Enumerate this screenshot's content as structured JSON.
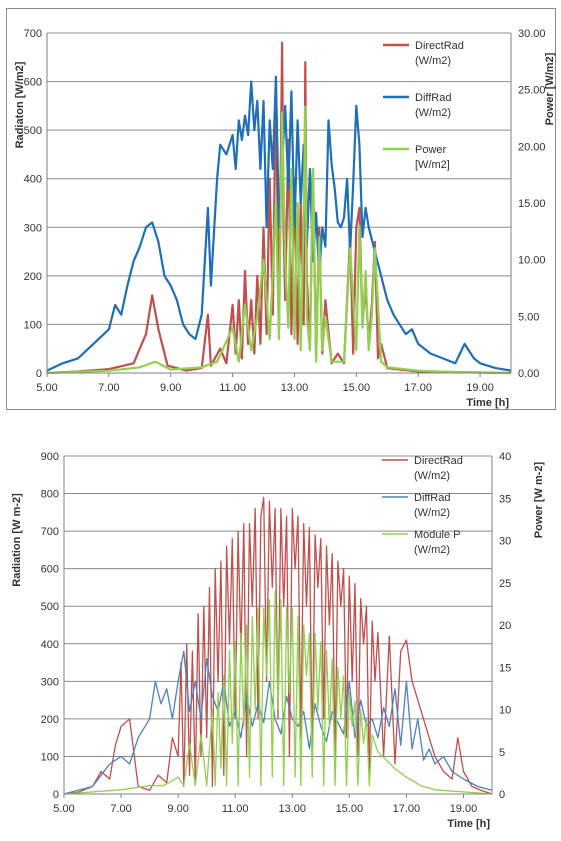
{
  "colors": {
    "direct": "#C0504D",
    "diff": "#1F6FB8",
    "diff_light": "#4F81BD",
    "power": "#92D050",
    "grid": "#8C8C8C",
    "axis": "#808080",
    "text": "#333333"
  },
  "chart_data": [
    {
      "type": "line",
      "xlabel": "Time [h]",
      "ylabel_left": "Radiaton [W/m2]",
      "ylabel_right": "Power [W/m2]",
      "xlim": [
        5.0,
        20.0
      ],
      "ylim_left": [
        0,
        700
      ],
      "ylim_right": [
        0,
        30
      ],
      "x_ticks": [
        "5.00",
        "7.00",
        "9.00",
        "11.00",
        "13.00",
        "15.00",
        "17.00",
        "19.00"
      ],
      "y_ticks_left": [
        "0",
        "100",
        "200",
        "300",
        "400",
        "500",
        "600",
        "700"
      ],
      "y_ticks_right": [
        "0.00",
        "5.00",
        "10.00",
        "15.00",
        "20.00",
        "25.00",
        "30.00"
      ],
      "grid": true,
      "legend_position": "top-right",
      "legend": [
        {
          "line1": "DirectRad",
          "line2": "(W/m2)"
        },
        {
          "line1": "DiffRad",
          "line2": "(W/m2)"
        },
        {
          "line1": "Power",
          "line2": "[W/m2]"
        }
      ],
      "series": [
        {
          "name": "DirectRad (W/m2)",
          "axis": "left",
          "style": "heavy",
          "x": [
            5.0,
            6.0,
            7.0,
            7.8,
            8.2,
            8.4,
            8.6,
            8.9,
            9.5,
            10.0,
            10.2,
            10.3,
            10.6,
            10.8,
            11.0,
            11.1,
            11.2,
            11.3,
            11.4,
            11.5,
            11.6,
            11.7,
            11.8,
            11.9,
            12.0,
            12.1,
            12.2,
            12.3,
            12.4,
            12.5,
            12.6,
            12.65,
            12.7,
            12.8,
            12.9,
            13.0,
            13.1,
            13.2,
            13.3,
            13.35,
            13.4,
            13.5,
            13.6,
            13.7,
            13.8,
            13.9,
            14.0,
            14.2,
            14.4,
            14.6,
            14.8,
            14.9,
            15.0,
            15.1,
            15.2,
            15.3,
            15.4,
            15.5,
            15.6,
            15.7,
            15.8,
            16.0,
            17.0,
            18.0,
            19.0,
            20.0
          ],
          "y": [
            0,
            3,
            8,
            20,
            80,
            160,
            90,
            15,
            5,
            10,
            120,
            15,
            50,
            20,
            140,
            40,
            150,
            30,
            210,
            60,
            150,
            40,
            200,
            60,
            300,
            80,
            400,
            120,
            600,
            90,
            680,
            300,
            150,
            480,
            80,
            400,
            60,
            350,
            100,
            640,
            200,
            50,
            420,
            30,
            300,
            40,
            150,
            20,
            40,
            20,
            280,
            40,
            300,
            340,
            100,
            180,
            60,
            140,
            270,
            30,
            60,
            10,
            3,
            2,
            1,
            0
          ]
        },
        {
          "name": "DiffRad (W/m2)",
          "axis": "left",
          "style": "heavy",
          "x": [
            5.0,
            5.5,
            6.0,
            6.5,
            7.0,
            7.2,
            7.4,
            7.6,
            7.8,
            8.0,
            8.2,
            8.4,
            8.6,
            8.8,
            9.0,
            9.2,
            9.4,
            9.6,
            9.8,
            10.0,
            10.2,
            10.3,
            10.5,
            10.6,
            10.8,
            11.0,
            11.1,
            11.2,
            11.3,
            11.4,
            11.5,
            11.6,
            11.7,
            11.8,
            11.9,
            12.0,
            12.1,
            12.2,
            12.3,
            12.4,
            12.5,
            12.6,
            12.7,
            12.8,
            12.9,
            13.0,
            13.1,
            13.2,
            13.3,
            13.4,
            13.5,
            13.6,
            13.7,
            13.8,
            13.9,
            14.0,
            14.1,
            14.2,
            14.3,
            14.4,
            14.5,
            14.6,
            14.7,
            14.8,
            14.9,
            15.0,
            15.1,
            15.2,
            15.3,
            15.4,
            15.6,
            15.8,
            16.0,
            16.2,
            16.4,
            16.6,
            16.8,
            17.0,
            17.4,
            17.8,
            18.2,
            18.5,
            18.8,
            19.0,
            19.5,
            20.0
          ],
          "y": [
            5,
            20,
            30,
            60,
            90,
            140,
            120,
            180,
            230,
            260,
            300,
            310,
            270,
            200,
            180,
            150,
            100,
            80,
            70,
            120,
            340,
            180,
            400,
            470,
            450,
            490,
            420,
            520,
            480,
            530,
            490,
            600,
            500,
            560,
            420,
            560,
            300,
            520,
            420,
            610,
            300,
            430,
            550,
            380,
            580,
            300,
            520,
            350,
            470,
            260,
            420,
            230,
            330,
            200,
            300,
            260,
            520,
            430,
            380,
            310,
            300,
            320,
            400,
            250,
            390,
            550,
            470,
            280,
            340,
            300,
            250,
            200,
            150,
            120,
            100,
            80,
            90,
            60,
            40,
            30,
            20,
            60,
            30,
            20,
            10,
            5
          ]
        },
        {
          "name": "Power [W/m2]",
          "axis": "right",
          "style": "heavy",
          "x": [
            5.0,
            7.0,
            8.0,
            8.5,
            9.0,
            10.0,
            10.5,
            11.0,
            11.2,
            11.4,
            11.6,
            11.8,
            12.0,
            12.2,
            12.4,
            12.5,
            12.6,
            12.7,
            12.8,
            12.9,
            13.0,
            13.1,
            13.2,
            13.3,
            13.35,
            13.4,
            13.5,
            13.6,
            13.7,
            13.8,
            13.9,
            14.0,
            14.2,
            14.4,
            14.6,
            14.8,
            15.0,
            15.1,
            15.2,
            15.3,
            15.4,
            15.5,
            15.6,
            15.8,
            16.0,
            17.0,
            18.0,
            20.0
          ],
          "y": [
            0,
            0.2,
            0.5,
            1,
            0.3,
            0.5,
            1,
            4,
            1,
            6,
            2,
            5,
            10,
            3,
            15,
            3,
            23,
            10,
            4,
            18,
            3,
            15,
            2,
            14,
            23.5,
            5,
            2,
            18,
            1,
            12,
            2,
            5,
            1,
            1,
            1,
            11,
            2,
            13,
            4,
            9,
            2,
            5,
            11,
            1,
            0.5,
            0.2,
            0.1,
            0
          ]
        }
      ]
    },
    {
      "type": "line",
      "xlabel": "Time [h]",
      "ylabel_left": "Radiation [W m-2]",
      "ylabel_right": "Power [W m-2]",
      "xlim": [
        5.0,
        20.0
      ],
      "ylim_left": [
        0,
        900
      ],
      "ylim_right": [
        0,
        40
      ],
      "x_ticks": [
        "5.00",
        "7.00",
        "9.00",
        "11.00",
        "13.00",
        "15.00",
        "17.00",
        "19.00"
      ],
      "y_ticks_left": [
        "0",
        "100",
        "200",
        "300",
        "400",
        "500",
        "600",
        "700",
        "800",
        "900"
      ],
      "y_ticks_right": [
        "0",
        "5",
        "10",
        "15",
        "20",
        "25",
        "30",
        "35",
        "40"
      ],
      "grid": true,
      "legend_position": "top-right",
      "legend": [
        {
          "line1": "DirectRad",
          "line2": "(W/m2)"
        },
        {
          "line1": "DiffRad",
          "line2": "(W/m2)"
        },
        {
          "line1": "Module P",
          "line2": "(W/m2)"
        }
      ],
      "series": [
        {
          "name": "DirectRad (W/m2)",
          "axis": "left",
          "style": "thin",
          "x": [
            5.0,
            5.5,
            6.0,
            6.3,
            6.6,
            6.8,
            7.0,
            7.3,
            7.6,
            8.0,
            8.3,
            8.6,
            8.8,
            9.0,
            9.1,
            9.2,
            9.3,
            9.4,
            9.5,
            9.6,
            9.7,
            9.8,
            9.9,
            10.0,
            10.1,
            10.2,
            10.3,
            10.4,
            10.5,
            10.6,
            10.7,
            10.8,
            10.9,
            11.0,
            11.1,
            11.2,
            11.3,
            11.4,
            11.5,
            11.6,
            11.7,
            11.8,
            11.9,
            12.0,
            12.1,
            12.2,
            12.3,
            12.4,
            12.5,
            12.6,
            12.7,
            12.8,
            12.9,
            13.0,
            13.1,
            13.2,
            13.3,
            13.4,
            13.5,
            13.6,
            13.7,
            13.8,
            13.9,
            14.0,
            14.1,
            14.2,
            14.3,
            14.4,
            14.5,
            14.6,
            14.7,
            14.8,
            14.9,
            15.0,
            15.1,
            15.2,
            15.3,
            15.4,
            15.5,
            15.6,
            15.7,
            15.8,
            15.9,
            16.0,
            16.2,
            16.4,
            16.6,
            16.8,
            17.0,
            17.2,
            17.4,
            17.6,
            17.8,
            18.0,
            18.3,
            18.6,
            18.8,
            19.0,
            19.3,
            19.6,
            20.0
          ],
          "y": [
            0,
            5,
            20,
            60,
            40,
            130,
            180,
            200,
            20,
            10,
            50,
            30,
            150,
            100,
            350,
            20,
            400,
            50,
            380,
            30,
            480,
            100,
            500,
            150,
            550,
            20,
            600,
            300,
            620,
            50,
            660,
            400,
            680,
            200,
            700,
            380,
            720,
            100,
            720,
            500,
            760,
            200,
            740,
            790,
            300,
            780,
            550,
            760,
            200,
            760,
            500,
            740,
            100,
            760,
            600,
            740,
            150,
            720,
            500,
            710,
            100,
            690,
            550,
            680,
            200,
            660,
            450,
            640,
            100,
            620,
            500,
            600,
            150,
            580,
            300,
            560,
            100,
            520,
            400,
            500,
            50,
            460,
            300,
            430,
            100,
            420,
            80,
            380,
            410,
            300,
            250,
            200,
            150,
            100,
            60,
            40,
            150,
            60,
            20,
            10,
            0
          ]
        },
        {
          "name": "DiffRad (W/m2)",
          "axis": "left",
          "style": "thin",
          "x": [
            5.0,
            5.5,
            6.0,
            6.3,
            6.6,
            7.0,
            7.3,
            7.6,
            8.0,
            8.2,
            8.4,
            8.6,
            8.8,
            9.0,
            9.2,
            9.4,
            9.6,
            9.8,
            10.0,
            10.2,
            10.4,
            10.6,
            10.8,
            11.0,
            11.2,
            11.4,
            11.6,
            11.8,
            12.0,
            12.2,
            12.4,
            12.6,
            12.8,
            13.0,
            13.2,
            13.4,
            13.6,
            13.8,
            14.0,
            14.2,
            14.4,
            14.6,
            14.8,
            15.0,
            15.2,
            15.4,
            15.6,
            15.8,
            16.0,
            16.2,
            16.4,
            16.6,
            16.8,
            17.0,
            17.2,
            17.4,
            17.6,
            17.8,
            18.0,
            18.3,
            18.6,
            19.0,
            19.5,
            20.0
          ],
          "y": [
            0,
            10,
            20,
            50,
            80,
            100,
            80,
            150,
            200,
            300,
            240,
            280,
            200,
            300,
            380,
            220,
            300,
            200,
            360,
            260,
            220,
            300,
            180,
            220,
            150,
            260,
            180,
            240,
            190,
            300,
            200,
            160,
            260,
            200,
            180,
            220,
            120,
            240,
            180,
            140,
            220,
            190,
            160,
            300,
            150,
            250,
            180,
            200,
            150,
            230,
            180,
            280,
            130,
            300,
            120,
            200,
            90,
            120,
            80,
            100,
            60,
            40,
            20,
            10
          ]
        },
        {
          "name": "Module P (W/m2)",
          "axis": "right",
          "style": "thin",
          "x": [
            5.0,
            7.0,
            8.0,
            8.5,
            9.0,
            9.2,
            9.4,
            9.6,
            9.8,
            10.0,
            10.2,
            10.3,
            10.4,
            10.5,
            10.6,
            10.7,
            10.8,
            10.9,
            11.0,
            11.1,
            11.2,
            11.3,
            11.4,
            11.5,
            11.6,
            11.7,
            11.8,
            11.9,
            12.0,
            12.1,
            12.2,
            12.3,
            12.4,
            12.5,
            12.6,
            12.7,
            12.8,
            12.9,
            13.0,
            13.1,
            13.2,
            13.3,
            13.4,
            13.5,
            13.6,
            13.7,
            13.8,
            13.9,
            14.0,
            14.1,
            14.2,
            14.3,
            14.4,
            14.5,
            14.6,
            14.7,
            14.8,
            14.9,
            15.0,
            15.1,
            15.2,
            15.3,
            15.4,
            15.5,
            15.6,
            15.7,
            15.8,
            16.0,
            16.3,
            16.6,
            17.0,
            17.5,
            18.0,
            20.0
          ],
          "y": [
            0,
            0.5,
            1,
            1,
            2,
            1,
            6,
            1,
            7,
            1,
            10,
            1,
            12,
            3,
            14,
            1,
            17,
            6,
            18,
            1,
            19,
            8,
            20,
            2,
            21,
            10,
            22,
            1,
            22,
            14,
            23,
            2,
            24,
            10,
            23,
            1,
            22,
            12,
            22,
            2,
            21,
            1,
            20,
            14,
            19,
            2,
            19,
            10,
            18,
            1,
            17,
            8,
            16,
            1,
            15,
            9,
            14,
            1,
            12,
            8,
            11,
            1,
            10,
            6,
            9,
            1,
            7,
            5,
            4,
            3,
            2,
            1,
            0.5,
            0
          ]
        }
      ]
    }
  ]
}
